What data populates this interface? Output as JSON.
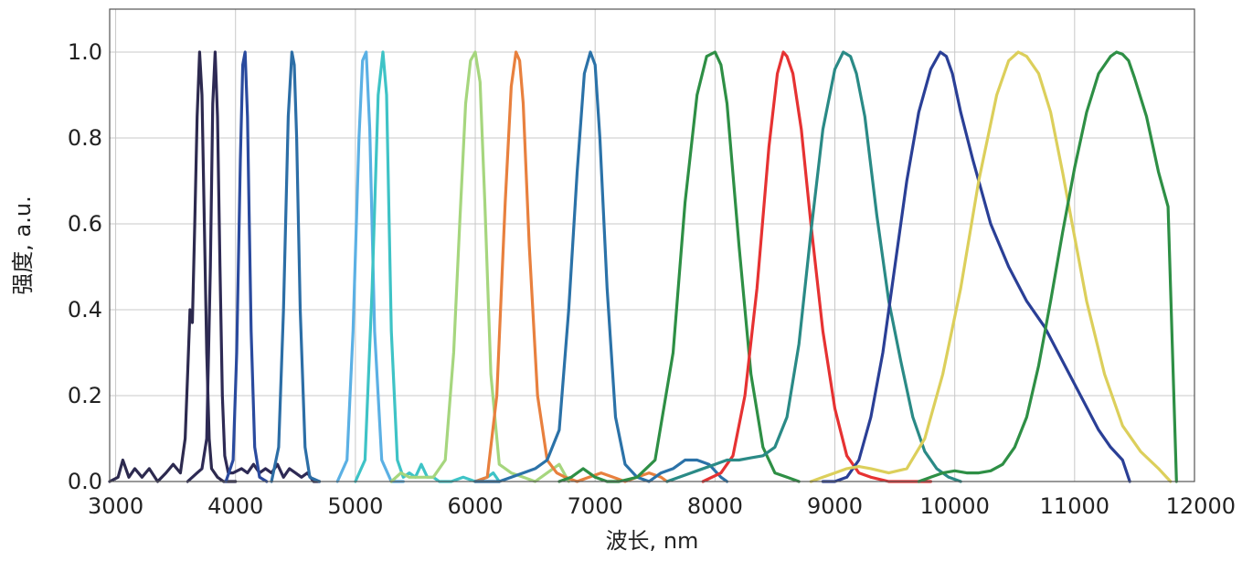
{
  "chart_data": {
    "type": "line",
    "title": "",
    "xlabel": "波长, nm",
    "ylabel": "强度, a.u.",
    "xlim": [
      2950,
      12000
    ],
    "ylim": [
      0,
      1.1
    ],
    "grid": true,
    "legend": "none",
    "x_ticks": [
      3000,
      4000,
      5000,
      6000,
      7000,
      8000,
      9000,
      10000,
      11000,
      12000
    ],
    "y_ticks": [
      0.0,
      0.2,
      0.4,
      0.6,
      0.8,
      1.0
    ],
    "x_tick_labels": [
      "3000",
      "4000",
      "5000",
      "6000",
      "7000",
      "8000",
      "9000",
      "10000",
      "11000",
      "12000"
    ],
    "y_tick_labels": [
      "0.0",
      "0.2",
      "0.4",
      "0.6",
      "0.8",
      "1.0"
    ],
    "series": [
      {
        "color": "#2d2a4f",
        "x": [
          2950,
          3020,
          3060,
          3110,
          3160,
          3220,
          3280,
          3350,
          3420,
          3480,
          3540,
          3580,
          3600,
          3620,
          3640,
          3660,
          3680,
          3700,
          3720,
          3740,
          3760,
          3780,
          3800,
          3850,
          3900,
          3950,
          4000
        ],
        "y": [
          0.0,
          0.01,
          0.05,
          0.01,
          0.03,
          0.01,
          0.03,
          0.0,
          0.02,
          0.04,
          0.02,
          0.1,
          0.25,
          0.4,
          0.37,
          0.6,
          0.85,
          1.0,
          0.9,
          0.6,
          0.3,
          0.1,
          0.03,
          0.01,
          0.0,
          0.0,
          0.0
        ]
      },
      {
        "color": "#2e2a55",
        "x": [
          3600,
          3680,
          3720,
          3760,
          3790,
          3810,
          3830,
          3850,
          3870,
          3890,
          3910,
          3940,
          3980,
          4050,
          4100,
          4150,
          4200,
          4250,
          4300,
          4350,
          4400,
          4450,
          4500,
          4550,
          4600,
          4650,
          4700
        ],
        "y": [
          0.0,
          0.02,
          0.03,
          0.1,
          0.5,
          0.88,
          1.0,
          0.85,
          0.5,
          0.2,
          0.06,
          0.02,
          0.02,
          0.03,
          0.02,
          0.04,
          0.02,
          0.03,
          0.02,
          0.04,
          0.01,
          0.03,
          0.02,
          0.01,
          0.02,
          0.0,
          0.0
        ]
      },
      {
        "color": "#2a4a9e",
        "x": [
          3920,
          3980,
          4010,
          4040,
          4060,
          4080,
          4100,
          4130,
          4160,
          4200,
          4260
        ],
        "y": [
          0.0,
          0.05,
          0.3,
          0.75,
          0.97,
          1.0,
          0.85,
          0.35,
          0.08,
          0.01,
          0.0
        ]
      },
      {
        "color": "#2c6ea6",
        "x": [
          4300,
          4360,
          4400,
          4440,
          4470,
          4490,
          4510,
          4540,
          4580,
          4620,
          4700
        ],
        "y": [
          0.0,
          0.08,
          0.4,
          0.85,
          1.0,
          0.97,
          0.8,
          0.4,
          0.08,
          0.01,
          0.0
        ]
      },
      {
        "color": "#5bb0e4",
        "x": [
          4850,
          4930,
          4980,
          5030,
          5060,
          5090,
          5120,
          5160,
          5220,
          5300,
          5400
        ],
        "y": [
          0.0,
          0.05,
          0.35,
          0.8,
          0.98,
          1.0,
          0.82,
          0.35,
          0.05,
          0.0,
          0.0
        ]
      },
      {
        "color": "#3ec3c6",
        "x": [
          5000,
          5080,
          5140,
          5190,
          5230,
          5260,
          5300,
          5350,
          5400,
          5450,
          5500,
          5550,
          5600,
          5650,
          5700,
          5800,
          5900,
          6000,
          6100,
          6150,
          6200
        ],
        "y": [
          0.0,
          0.05,
          0.45,
          0.9,
          1.0,
          0.9,
          0.35,
          0.05,
          0.01,
          0.02,
          0.01,
          0.04,
          0.01,
          0.01,
          0.0,
          0.0,
          0.01,
          0.0,
          0.01,
          0.02,
          0.0
        ]
      },
      {
        "color": "#a6d67e",
        "x": [
          5300,
          5380,
          5450,
          5550,
          5650,
          5750,
          5820,
          5870,
          5920,
          5960,
          6000,
          6040,
          6080,
          6130,
          6200,
          6300,
          6400,
          6500,
          6600,
          6700,
          6780
        ],
        "y": [
          0.0,
          0.02,
          0.01,
          0.01,
          0.01,
          0.05,
          0.3,
          0.6,
          0.88,
          0.98,
          1.0,
          0.93,
          0.65,
          0.25,
          0.04,
          0.02,
          0.01,
          0.0,
          0.02,
          0.04,
          0.0
        ]
      },
      {
        "color": "#e8803e",
        "x": [
          6000,
          6100,
          6180,
          6250,
          6300,
          6340,
          6370,
          6400,
          6450,
          6520,
          6600,
          6680,
          6750,
          6850,
          6950,
          7050,
          7150,
          7250,
          7350,
          7450,
          7550,
          7600
        ],
        "y": [
          0.0,
          0.01,
          0.2,
          0.65,
          0.92,
          1.0,
          0.98,
          0.88,
          0.55,
          0.2,
          0.05,
          0.02,
          0.01,
          0.0,
          0.01,
          0.02,
          0.01,
          0.0,
          0.01,
          0.02,
          0.01,
          0.0
        ]
      },
      {
        "color": "#2b72a8",
        "x": [
          6000,
          6200,
          6400,
          6500,
          6600,
          6700,
          6780,
          6850,
          6910,
          6960,
          7000,
          7040,
          7100,
          7170,
          7250,
          7350,
          7450,
          7550,
          7650,
          7750,
          7850,
          7950,
          8050,
          8100
        ],
        "y": [
          0.0,
          0.0,
          0.02,
          0.03,
          0.05,
          0.12,
          0.4,
          0.72,
          0.95,
          1.0,
          0.97,
          0.8,
          0.45,
          0.15,
          0.04,
          0.01,
          0.0,
          0.02,
          0.03,
          0.05,
          0.05,
          0.04,
          0.01,
          0.0
        ]
      },
      {
        "color": "#2e8f45",
        "x": [
          6700,
          6800,
          6900,
          6950,
          7000,
          7100,
          7200,
          7350,
          7500,
          7650,
          7750,
          7850,
          7930,
          8000,
          8050,
          8100,
          8200,
          8300,
          8400,
          8500,
          8600,
          8700
        ],
        "y": [
          0.0,
          0.01,
          0.03,
          0.02,
          0.01,
          0.0,
          0.0,
          0.01,
          0.05,
          0.3,
          0.65,
          0.9,
          0.99,
          1.0,
          0.97,
          0.88,
          0.55,
          0.25,
          0.08,
          0.02,
          0.01,
          0.0
        ]
      },
      {
        "color": "#e63232",
        "x": [
          7900,
          8050,
          8150,
          8250,
          8350,
          8450,
          8520,
          8570,
          8600,
          8650,
          8720,
          8800,
          8900,
          9000,
          9100,
          9200,
          9300,
          9450,
          9600,
          9800
        ],
        "y": [
          0.0,
          0.02,
          0.06,
          0.2,
          0.45,
          0.78,
          0.95,
          1.0,
          0.99,
          0.95,
          0.82,
          0.6,
          0.35,
          0.17,
          0.06,
          0.02,
          0.01,
          0.0,
          0.0,
          0.0
        ]
      },
      {
        "color": "#2a8a86",
        "x": [
          7600,
          7800,
          8000,
          8100,
          8200,
          8300,
          8400,
          8500,
          8600,
          8700,
          8800,
          8900,
          9000,
          9070,
          9130,
          9180,
          9250,
          9350,
          9450,
          9550,
          9650,
          9750,
          9850,
          9950,
          10050
        ],
        "y": [
          0.0,
          0.02,
          0.04,
          0.05,
          0.05,
          0.055,
          0.06,
          0.08,
          0.15,
          0.32,
          0.58,
          0.82,
          0.96,
          1.0,
          0.99,
          0.95,
          0.85,
          0.62,
          0.42,
          0.28,
          0.15,
          0.07,
          0.03,
          0.01,
          0.0
        ]
      },
      {
        "color": "#2a3f96",
        "x": [
          8900,
          9000,
          9100,
          9200,
          9300,
          9400,
          9500,
          9600,
          9700,
          9800,
          9880,
          9930,
          9980,
          10050,
          10150,
          10300,
          10450,
          10600,
          10750,
          10900,
          11050,
          11200,
          11300,
          11400,
          11460
        ],
        "y": [
          0.0,
          0.0,
          0.01,
          0.05,
          0.15,
          0.3,
          0.5,
          0.7,
          0.86,
          0.96,
          1.0,
          0.99,
          0.95,
          0.86,
          0.75,
          0.6,
          0.5,
          0.42,
          0.36,
          0.28,
          0.2,
          0.12,
          0.08,
          0.05,
          0.0
        ]
      },
      {
        "color": "#dccf5b",
        "x": [
          8800,
          8900,
          9000,
          9100,
          9200,
          9300,
          9450,
          9600,
          9750,
          9900,
          10050,
          10200,
          10350,
          10450,
          10530,
          10600,
          10700,
          10800,
          10900,
          11000,
          11100,
          11250,
          11400,
          11550,
          11700,
          11800
        ],
        "y": [
          0.0,
          0.01,
          0.02,
          0.03,
          0.035,
          0.03,
          0.02,
          0.03,
          0.1,
          0.25,
          0.45,
          0.7,
          0.9,
          0.98,
          1.0,
          0.99,
          0.95,
          0.86,
          0.72,
          0.57,
          0.42,
          0.25,
          0.13,
          0.07,
          0.03,
          0.0
        ]
      },
      {
        "color": "#2e8f45",
        "x": [
          9700,
          9800,
          9900,
          10000,
          10100,
          10200,
          10300,
          10400,
          10500,
          10600,
          10700,
          10800,
          10900,
          11000,
          11100,
          11200,
          11300,
          11350,
          11400,
          11450,
          11500,
          11600,
          11700,
          11780,
          11850
        ],
        "y": [
          0.0,
          0.01,
          0.02,
          0.025,
          0.02,
          0.02,
          0.025,
          0.04,
          0.08,
          0.15,
          0.27,
          0.42,
          0.58,
          0.73,
          0.86,
          0.95,
          0.99,
          1.0,
          0.995,
          0.98,
          0.94,
          0.85,
          0.72,
          0.64,
          0.0
        ]
      }
    ]
  }
}
